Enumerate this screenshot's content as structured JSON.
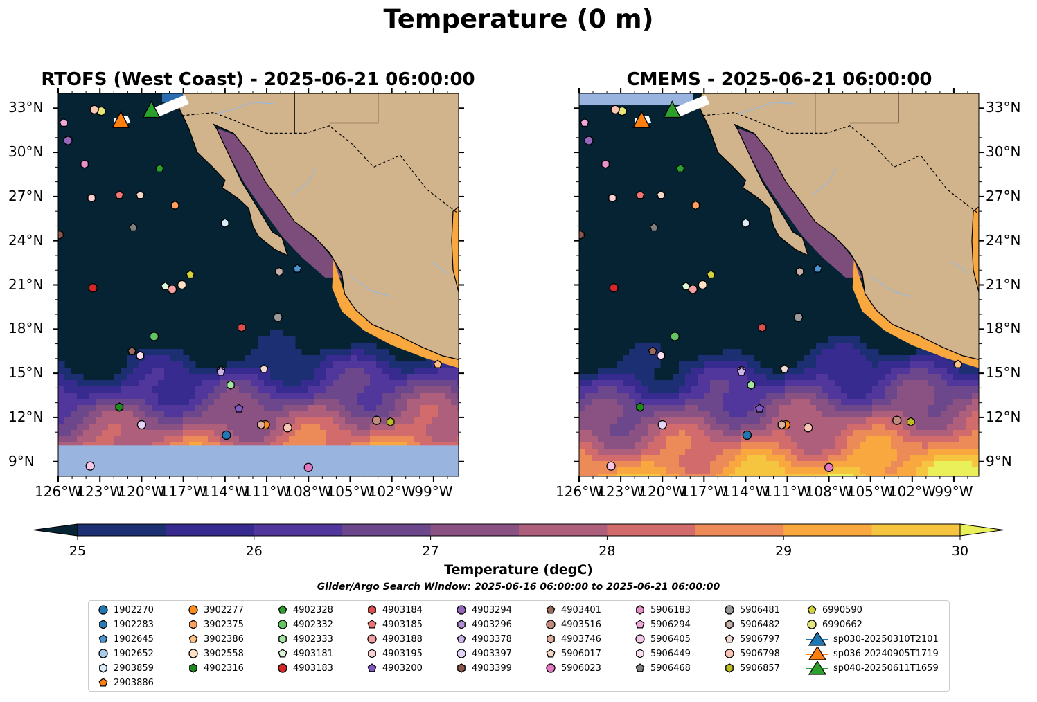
{
  "figure": {
    "suptitle": "Temperature (0 m)",
    "left_title": "RTOFS (West Coast) - 2025-06-21 06:00:00",
    "right_title": "CMEMS - 2025-06-21 06:00:00",
    "colorbar_label": "Temperature (degC)",
    "search_window": "Glider/Argo Search Window: 2025-06-16 06:00:00 to 2025-06-21 06:00:00"
  },
  "map": {
    "lon_ticks": [
      "126°W",
      "123°W",
      "120°W",
      "117°W",
      "114°W",
      "111°W",
      "108°W",
      "105°W",
      "102°W",
      "99°W"
    ],
    "lat_ticks": [
      "33°N",
      "30°N",
      "27°N",
      "24°N",
      "21°N",
      "18°N",
      "15°N",
      "12°N",
      "9°N"
    ],
    "colors": {
      "land": "#d2b48c",
      "ocean_cold": "#052333",
      "rivers": "#9cb8d8",
      "nodata": "#99b5df"
    }
  },
  "colorbar": {
    "ticks": [
      "25",
      "26",
      "27",
      "28",
      "29",
      "30"
    ],
    "min": 25,
    "max": 30,
    "step": 0.5,
    "extend": "both",
    "colors": [
      "#062433",
      "#1d2f73",
      "#372b8f",
      "#51369b",
      "#6d478c",
      "#8a5283",
      "#ad5f7c",
      "#d26c6c",
      "#ed8b58",
      "#f9a840",
      "#f6c53f",
      "#eaf05a"
    ]
  },
  "legend": {
    "items": [
      {
        "label": "1902270",
        "marker": "circle",
        "color": "#1f77b4"
      },
      {
        "label": "1902283",
        "marker": "hexagon",
        "color": "#2b7bb9"
      },
      {
        "label": "1902645",
        "marker": "pentagon",
        "color": "#4b94d0"
      },
      {
        "label": "1902652",
        "marker": "circle",
        "color": "#a6cbe9"
      },
      {
        "label": "2903859",
        "marker": "hexagon",
        "color": "#d9ecfa"
      },
      {
        "label": "2903886",
        "marker": "pentagon",
        "color": "#ff7f0e"
      },
      {
        "label": "3902277",
        "marker": "circle",
        "color": "#ff8c1a"
      },
      {
        "label": "3902375",
        "marker": "hexagon",
        "color": "#ffa060"
      },
      {
        "label": "3902386",
        "marker": "pentagon",
        "color": "#ffc285"
      },
      {
        "label": "3902558",
        "marker": "circle",
        "color": "#ffe0c4"
      },
      {
        "label": "4902316",
        "marker": "hexagon",
        "color": "#1c8a1c"
      },
      {
        "label": "4902328",
        "marker": "pentagon",
        "color": "#2ca02c"
      },
      {
        "label": "4902332",
        "marker": "circle",
        "color": "#62c462"
      },
      {
        "label": "4902333",
        "marker": "hexagon",
        "color": "#a3e6a3"
      },
      {
        "label": "4903181",
        "marker": "pentagon",
        "color": "#dcf7d7"
      },
      {
        "label": "4903183",
        "marker": "circle",
        "color": "#d62728"
      },
      {
        "label": "4903184",
        "marker": "hexagon",
        "color": "#e14c4c"
      },
      {
        "label": "4903185",
        "marker": "pentagon",
        "color": "#f07474"
      },
      {
        "label": "4903188",
        "marker": "circle",
        "color": "#f5a0a0"
      },
      {
        "label": "4903195",
        "marker": "hexagon",
        "color": "#fbd0d0"
      },
      {
        "label": "4903200",
        "marker": "pentagon",
        "color": "#7e57c2"
      },
      {
        "label": "4903294",
        "marker": "circle",
        "color": "#9467bd"
      },
      {
        "label": "4903296",
        "marker": "hexagon",
        "color": "#b18fd6"
      },
      {
        "label": "4903378",
        "marker": "pentagon",
        "color": "#cdb3ea"
      },
      {
        "label": "4903397",
        "marker": "circle",
        "color": "#e4d4f5"
      },
      {
        "label": "4903399",
        "marker": "hexagon",
        "color": "#8c564b"
      },
      {
        "label": "4903401",
        "marker": "pentagon",
        "color": "#9c6a5e"
      },
      {
        "label": "4903516",
        "marker": "circle",
        "color": "#c08b7c"
      },
      {
        "label": "4903746",
        "marker": "hexagon",
        "color": "#dfb09e"
      },
      {
        "label": "5906017",
        "marker": "pentagon",
        "color": "#f5d7c8"
      },
      {
        "label": "5906023",
        "marker": "circle",
        "color": "#e377c2"
      },
      {
        "label": "5906183",
        "marker": "hexagon",
        "color": "#e890cc"
      },
      {
        "label": "5906294",
        "marker": "pentagon",
        "color": "#f0a9d9"
      },
      {
        "label": "5906405",
        "marker": "circle",
        "color": "#f7c7e7"
      },
      {
        "label": "5906449",
        "marker": "hexagon",
        "color": "#fbdff1"
      },
      {
        "label": "5906468",
        "marker": "pentagon",
        "color": "#7f7f7f"
      },
      {
        "label": "5906481",
        "marker": "circle",
        "color": "#999999"
      },
      {
        "label": "5906482",
        "marker": "hexagon",
        "color": "#c7b0a8"
      },
      {
        "label": "5906797",
        "marker": "pentagon",
        "color": "#f2d9d3"
      },
      {
        "label": "5906798",
        "marker": "circle",
        "color": "#fbc5b6"
      },
      {
        "label": "5906857",
        "marker": "hexagon",
        "color": "#bcbd22"
      },
      {
        "label": "6990590",
        "marker": "pentagon",
        "color": "#d2d33c"
      },
      {
        "label": "6990662",
        "marker": "circle",
        "color": "#e5e57a"
      },
      {
        "label": "sp030-20250310T2101",
        "marker": "triangle",
        "color": "#1f77b4"
      },
      {
        "label": "sp036-20240905T1719",
        "marker": "triangle",
        "color": "#ff7f0e"
      },
      {
        "label": "sp040-20250611T1659",
        "marker": "triangle",
        "color": "#2ca02c"
      }
    ]
  }
}
